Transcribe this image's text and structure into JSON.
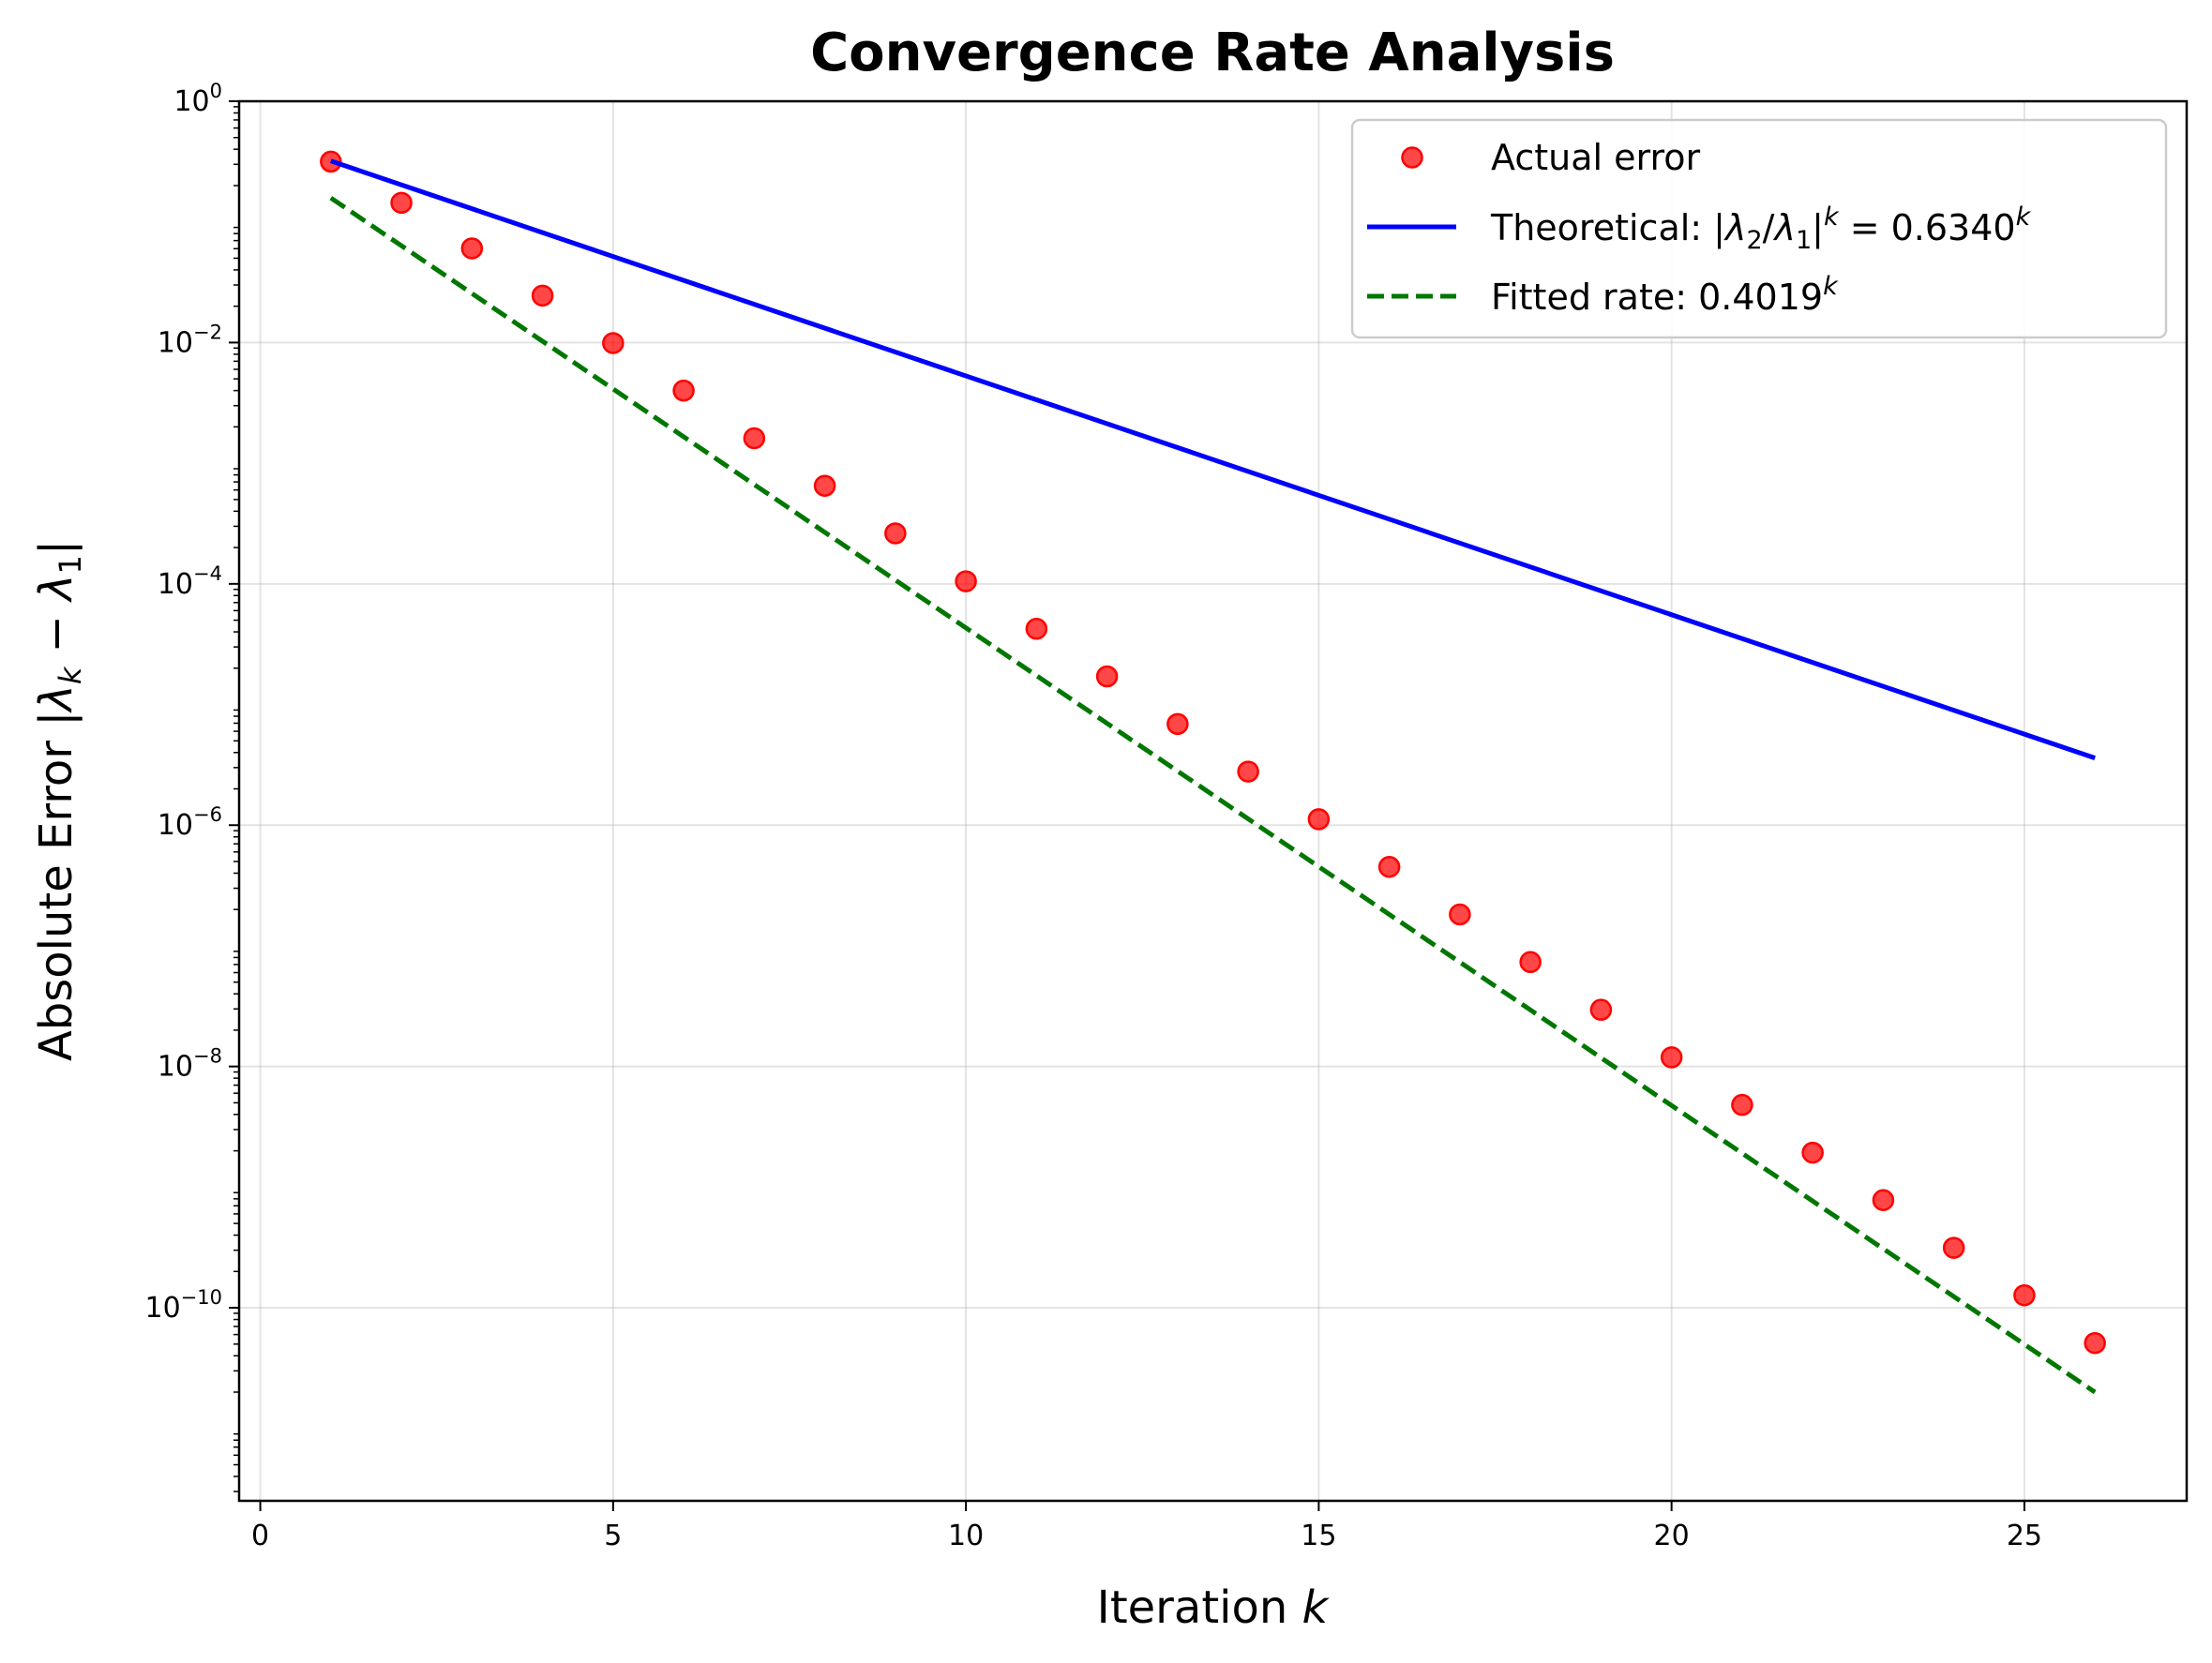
{
  "chart_data": {
    "type": "scatter",
    "title": "Convergence Rate Analysis",
    "xlabel": "Iteration k",
    "ylabel": "Absolute Error |λk − λ1|",
    "xlim": [
      -0.3,
      27.3
    ],
    "ylim_log10": [
      -11.6,
      0
    ],
    "yscale": "log",
    "grid": true,
    "legend_position": "top-right",
    "x_ticks": [
      0,
      5,
      10,
      15,
      20,
      25
    ],
    "y_ticks": [
      {
        "base": "10",
        "exp": "0",
        "value": 1
      },
      {
        "base": "10",
        "exp": "−2",
        "value": 0.01
      },
      {
        "base": "10",
        "exp": "−4",
        "value": 0.0001
      },
      {
        "base": "10",
        "exp": "−6",
        "value": 1e-06
      },
      {
        "base": "10",
        "exp": "−8",
        "value": 1e-08
      },
      {
        "base": "10",
        "exp": "−10",
        "value": 1e-10
      }
    ],
    "series": [
      {
        "name": "Actual error",
        "kind": "markers",
        "color": "#ff0000",
        "x": [
          1,
          2,
          3,
          4,
          5,
          6,
          7,
          8,
          9,
          10,
          11,
          12,
          13,
          14,
          15,
          16,
          17,
          18,
          19,
          20,
          21,
          22,
          23,
          24,
          25,
          26
        ],
        "y": [
          0.316,
          0.144,
          0.0603,
          0.0245,
          0.0099,
          0.004,
          0.00161,
          0.00065,
          0.000262,
          0.000105,
          4.24e-05,
          1.71e-05,
          6.89e-06,
          2.78e-06,
          1.12e-06,
          4.51e-07,
          1.82e-07,
          7.33e-08,
          2.95e-08,
          1.19e-08,
          4.8e-09,
          1.93e-09,
          7.8e-10,
          3.14e-10,
          1.27e-10,
          5.1e-11
        ]
      },
      {
        "name": "Theoretical: |λ2/λ1|k = 0.6340k",
        "kind": "line",
        "color": "#0000ff",
        "x": [
          1,
          26
        ],
        "y": [
          0.32,
          3.6e-06
        ]
      },
      {
        "name": "Fitted rate: 0.4019k",
        "kind": "dashed-line",
        "color": "#007700",
        "x": [
          1,
          26
        ],
        "y": [
          0.158,
          2e-11
        ]
      }
    ]
  },
  "legend": {
    "actual": "Actual error",
    "theoretical_prefix": "Theoretical: |",
    "lambda": "λ",
    "sub2": "2",
    "sub1": "1",
    "slash": "/",
    "bar": "|",
    "k": "k",
    "theoretical_equals": " = 0.6340",
    "fitted_prefix": "Fitted rate: 0.4019"
  },
  "axes": {
    "title": "Convergence Rate Analysis",
    "xlabel_prefix": "Iteration ",
    "xlabel_var": "k",
    "ylabel_prefix": "Absolute Error |",
    "ylabel_lambda": "λ",
    "ylabel_sub_k": "k",
    "ylabel_minus": " − ",
    "ylabel_sub_1": "1",
    "ylabel_suffix": "|"
  }
}
